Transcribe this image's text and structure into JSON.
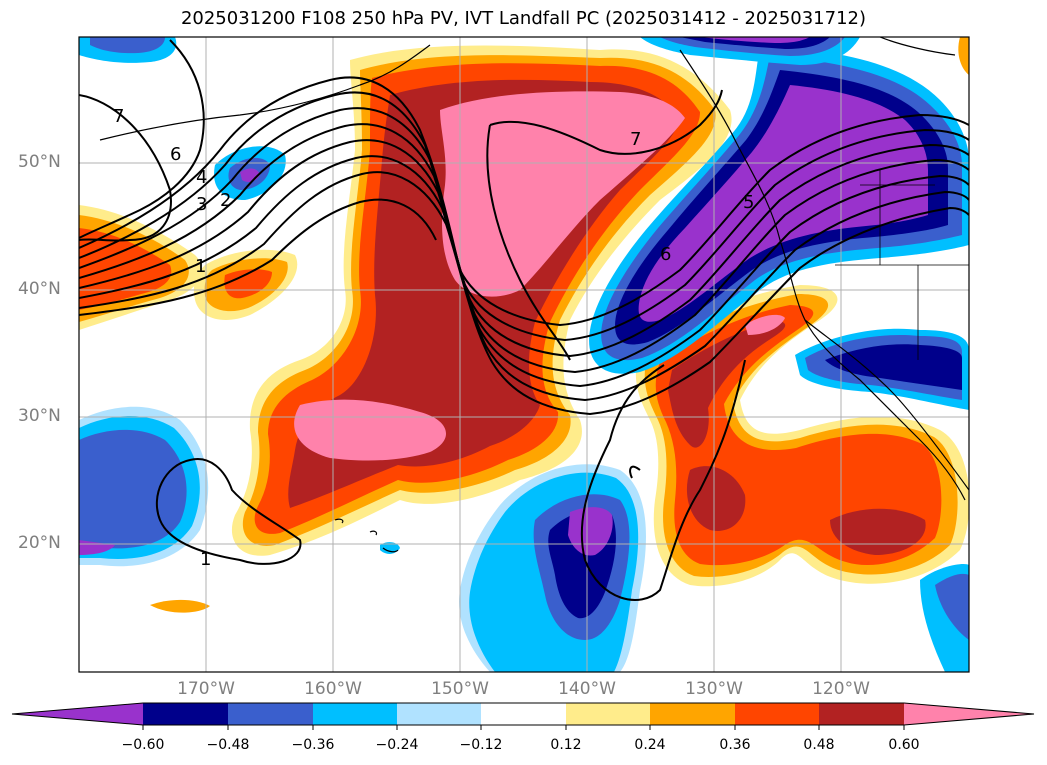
{
  "title": "2025031200 F108 250 hPa PV, IVT Landfall PC (2025031412 - 2025031712)",
  "lat_labels": [
    "50°N",
    "40°N",
    "30°N",
    "20°N"
  ],
  "lon_labels": [
    "170°W",
    "160°W",
    "150°W",
    "140°W",
    "130°W",
    "120°W"
  ],
  "colorbar": {
    "ticks": [
      "−0.60",
      "−0.48",
      "−0.36",
      "−0.24",
      "−0.12",
      "0.12",
      "0.24",
      "0.36",
      "0.48",
      "0.60"
    ],
    "colors": [
      "#9932cc",
      "#00008b",
      "#3a5fcd",
      "#00bfff",
      "#b0e2ff",
      "#ffffff",
      "#ffec8b",
      "#ffa500",
      "#ff4500",
      "#b22222",
      "#ff82ab"
    ]
  },
  "contour_labels": [
    "7",
    "6",
    "4",
    "3",
    "2",
    "1",
    "7",
    "5",
    "6",
    "1"
  ],
  "colors": {
    "purple": "#9932cc",
    "navy": "#00008b",
    "royal": "#3a5fcd",
    "sky": "#00bfff",
    "pale_blue": "#b0e2ff",
    "pale_yellow": "#ffec8b",
    "orange": "#ffa500",
    "red_orange": "#ff4500",
    "firebrick": "#b22222",
    "pink": "#ff82ab"
  }
}
